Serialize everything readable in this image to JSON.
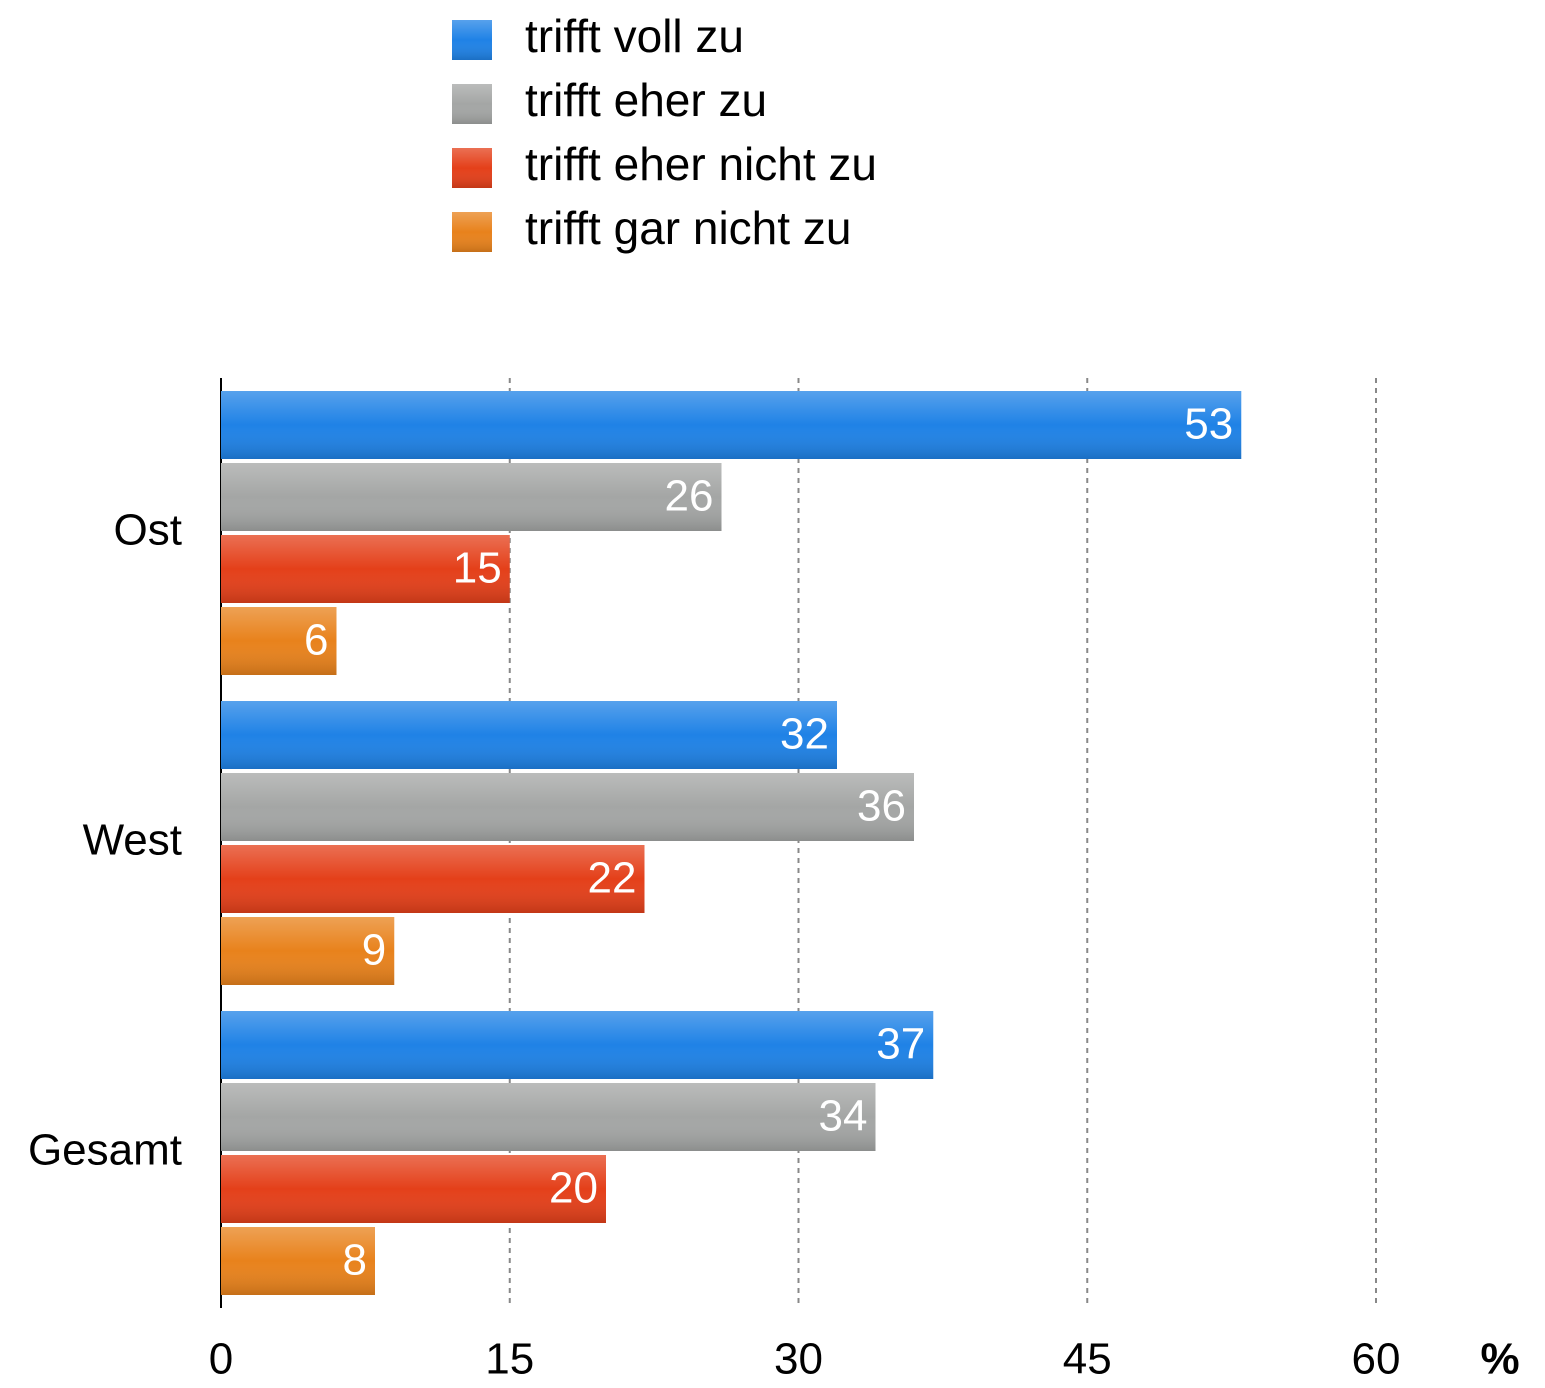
{
  "chart_data": {
    "type": "hbar",
    "categories": [
      "Ost",
      "West",
      "Gesamt"
    ],
    "series": [
      {
        "name": "trifft voll zu",
        "color": "#1f82e6",
        "values": [
          53,
          32,
          37
        ]
      },
      {
        "name": "trifft eher zu",
        "color": "#a4a6a5",
        "values": [
          26,
          36,
          34
        ]
      },
      {
        "name": "trifft eher nicht zu",
        "color": "#e4401a",
        "values": [
          15,
          22,
          20
        ]
      },
      {
        "name": "trifft gar nicht zu",
        "color": "#e8821c",
        "values": [
          6,
          9,
          8
        ]
      }
    ],
    "x_label": "%",
    "xlim": [
      0,
      60
    ],
    "xticks": [
      0,
      15,
      30,
      45,
      60
    ],
    "grid": true,
    "legend": "top"
  }
}
